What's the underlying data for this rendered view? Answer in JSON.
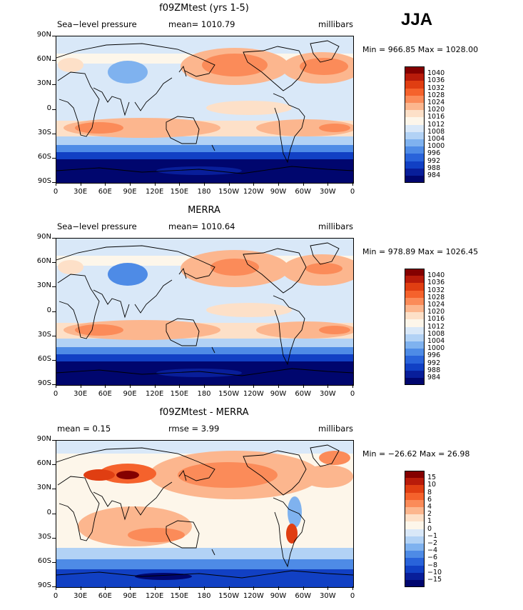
{
  "season": "JJA",
  "lat_labels": [
    "90N",
    "60N",
    "30N",
    "0",
    "30S",
    "60S",
    "90S"
  ],
  "lon_labels": [
    "0",
    "30E",
    "60E",
    "90E",
    "120E",
    "150E",
    "180",
    "150W",
    "120W",
    "90W",
    "60W",
    "30W",
    "0"
  ],
  "panels": [
    {
      "title": "f09ZMtest (yrs 1-5)",
      "left_label": "Sea−level pressure",
      "center_label": "mean= 1010.79",
      "right_label": "millibars",
      "minmax": "Min = 966.85 Max = 1028.00",
      "stats": {
        "min": 966.85,
        "max": 1028.0,
        "mean": 1010.79
      },
      "colorbar_levels": [
        "1040",
        "1036",
        "1032",
        "1028",
        "1024",
        "1020",
        "1016",
        "1012",
        "1008",
        "1004",
        "1000",
        "996",
        "992",
        "988",
        "984"
      ],
      "kind": "model"
    },
    {
      "title": "MERRA",
      "left_label": "Sea−level pressure",
      "center_label": "mean= 1010.64",
      "right_label": "millibars",
      "minmax": "Min = 978.89 Max = 1026.45",
      "stats": {
        "min": 978.89,
        "max": 1026.45,
        "mean": 1010.64
      },
      "colorbar_levels": [
        "1040",
        "1036",
        "1032",
        "1028",
        "1024",
        "1020",
        "1016",
        "1012",
        "1008",
        "1004",
        "1000",
        "996",
        "992",
        "988",
        "984"
      ],
      "kind": "obs"
    },
    {
      "title": "f09ZMtest - MERRA",
      "left_label": "mean =    0.15",
      "center_label": "rmse =    3.99",
      "right_label": "millibars",
      "minmax": "Min = −26.62 Max =   26.98",
      "stats": {
        "min": -26.62,
        "max": 26.98,
        "mean": 0.15,
        "rmse": 3.99
      },
      "colorbar_levels": [
        "15",
        "10",
        "8",
        "6",
        "4",
        "2",
        "1",
        "0",
        "−1",
        "−2",
        "−4",
        "−6",
        "−8",
        "−10",
        "−15"
      ],
      "kind": "diff"
    }
  ],
  "colors": {
    "scale": [
      "#840000",
      "#b81b0a",
      "#e03e12",
      "#f5622c",
      "#fb8b59",
      "#fcb68e",
      "#fde0c8",
      "#fdf6ea",
      "#d9e8f8",
      "#b2d2f5",
      "#7fb2ef",
      "#4e8be6",
      "#2963da",
      "#1140c4",
      "#081e9a",
      "#00066e"
    ]
  }
}
